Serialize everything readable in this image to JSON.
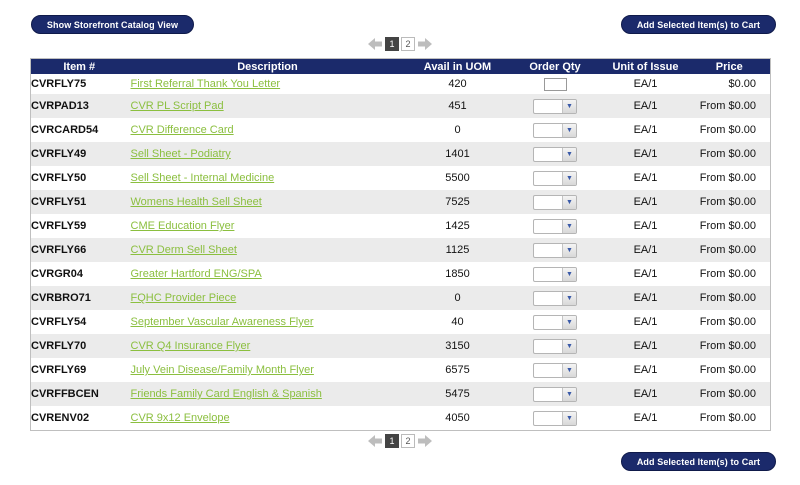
{
  "buttons": {
    "catalog_view": "Show Storefront Catalog View",
    "add_to_cart": "Add Selected Item(s) to Cart"
  },
  "pagination": {
    "current": "1",
    "other": "2"
  },
  "table": {
    "headers": [
      "Item #",
      "Description",
      "Avail in UOM",
      "Order Qty",
      "Unit of Issue",
      "Price"
    ],
    "rows": [
      {
        "item": "CVRFLY75",
        "desc": "First Referral Thank You Letter",
        "avail": "420",
        "uoi": "EA/1",
        "price": "$0.00",
        "qty_type": "input"
      },
      {
        "item": "CVRPAD13",
        "desc": "CVR PL Script Pad",
        "avail": "451",
        "uoi": "EA/1",
        "price": "From $0.00",
        "qty_type": "select"
      },
      {
        "item": "CVRCARD54",
        "desc": "CVR Difference Card",
        "avail": "0",
        "uoi": "EA/1",
        "price": "From $0.00",
        "qty_type": "select"
      },
      {
        "item": "CVRFLY49",
        "desc": "Sell Sheet - Podiatry",
        "avail": "1401",
        "uoi": "EA/1",
        "price": "From $0.00",
        "qty_type": "select"
      },
      {
        "item": "CVRFLY50",
        "desc": "Sell Sheet - Internal Medicine",
        "avail": "5500",
        "uoi": "EA/1",
        "price": "From $0.00",
        "qty_type": "select"
      },
      {
        "item": "CVRFLY51",
        "desc": "Womens Health Sell Sheet",
        "avail": "7525",
        "uoi": "EA/1",
        "price": "From $0.00",
        "qty_type": "select"
      },
      {
        "item": "CVRFLY59",
        "desc": "CME Education Flyer",
        "avail": "1425",
        "uoi": "EA/1",
        "price": "From $0.00",
        "qty_type": "select"
      },
      {
        "item": "CVRFLY66",
        "desc": "CVR Derm Sell Sheet",
        "avail": "1125",
        "uoi": "EA/1",
        "price": "From $0.00",
        "qty_type": "select"
      },
      {
        "item": "CVRGR04",
        "desc": "Greater Hartford ENG/SPA",
        "avail": "1850",
        "uoi": "EA/1",
        "price": "From $0.00",
        "qty_type": "select"
      },
      {
        "item": "CVRBRO71",
        "desc": "FQHC Provider Piece",
        "avail": "0",
        "uoi": "EA/1",
        "price": "From $0.00",
        "qty_type": "select"
      },
      {
        "item": "CVRFLY54",
        "desc": "September Vascular Awareness Flyer",
        "avail": "40",
        "uoi": "EA/1",
        "price": "From $0.00",
        "qty_type": "select"
      },
      {
        "item": "CVRFLY70",
        "desc": "CVR Q4 Insurance Flyer",
        "avail": "3150",
        "uoi": "EA/1",
        "price": "From $0.00",
        "qty_type": "select"
      },
      {
        "item": "CVRFLY69",
        "desc": "July Vein Disease/Family Month Flyer",
        "avail": "6575",
        "uoi": "EA/1",
        "price": "From $0.00",
        "qty_type": "select"
      },
      {
        "item": "CVRFFBCEN",
        "desc": "Friends Family Card English & Spanish",
        "avail": "5475",
        "uoi": "EA/1",
        "price": "From $0.00",
        "qty_type": "select"
      },
      {
        "item": "CVRENV02",
        "desc": "CVR 9x12 Envelope",
        "avail": "4050",
        "uoi": "EA/1",
        "price": "From $0.00",
        "qty_type": "select"
      }
    ]
  },
  "colors": {
    "header_bg": "#1b2a6b",
    "link": "#8bbf3f",
    "row_alt": "#ebebeb"
  }
}
